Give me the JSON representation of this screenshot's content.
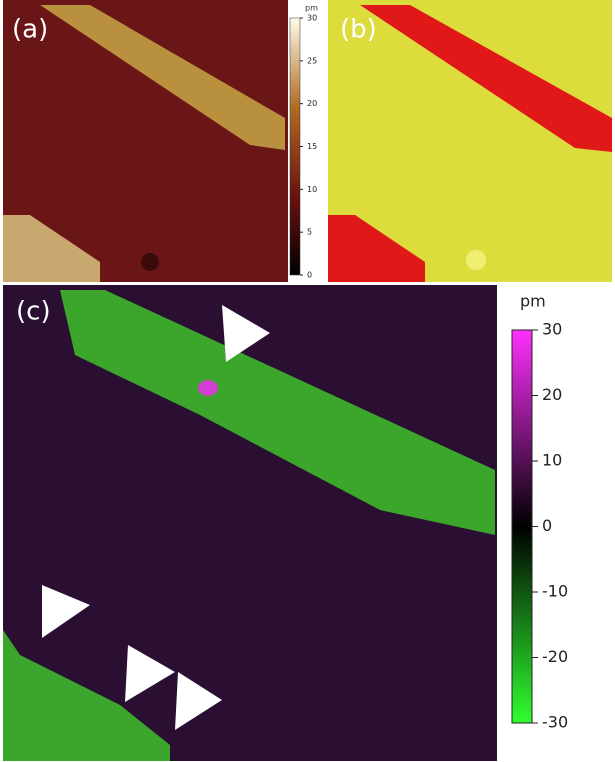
{
  "panels": [
    {
      "label": "(a)"
    },
    {
      "label": "(b)"
    },
    {
      "label": "(c)"
    }
  ],
  "colorbars": [
    {
      "unit": "pm",
      "lim": [
        0,
        30
      ],
      "ticks": [
        0,
        5,
        10,
        15,
        20,
        25,
        30
      ]
    },
    {
      "unit": "pm",
      "lim": [
        -30,
        30
      ],
      "ticks": [
        30,
        20,
        10,
        0,
        -10,
        -20,
        -30
      ]
    }
  ]
}
